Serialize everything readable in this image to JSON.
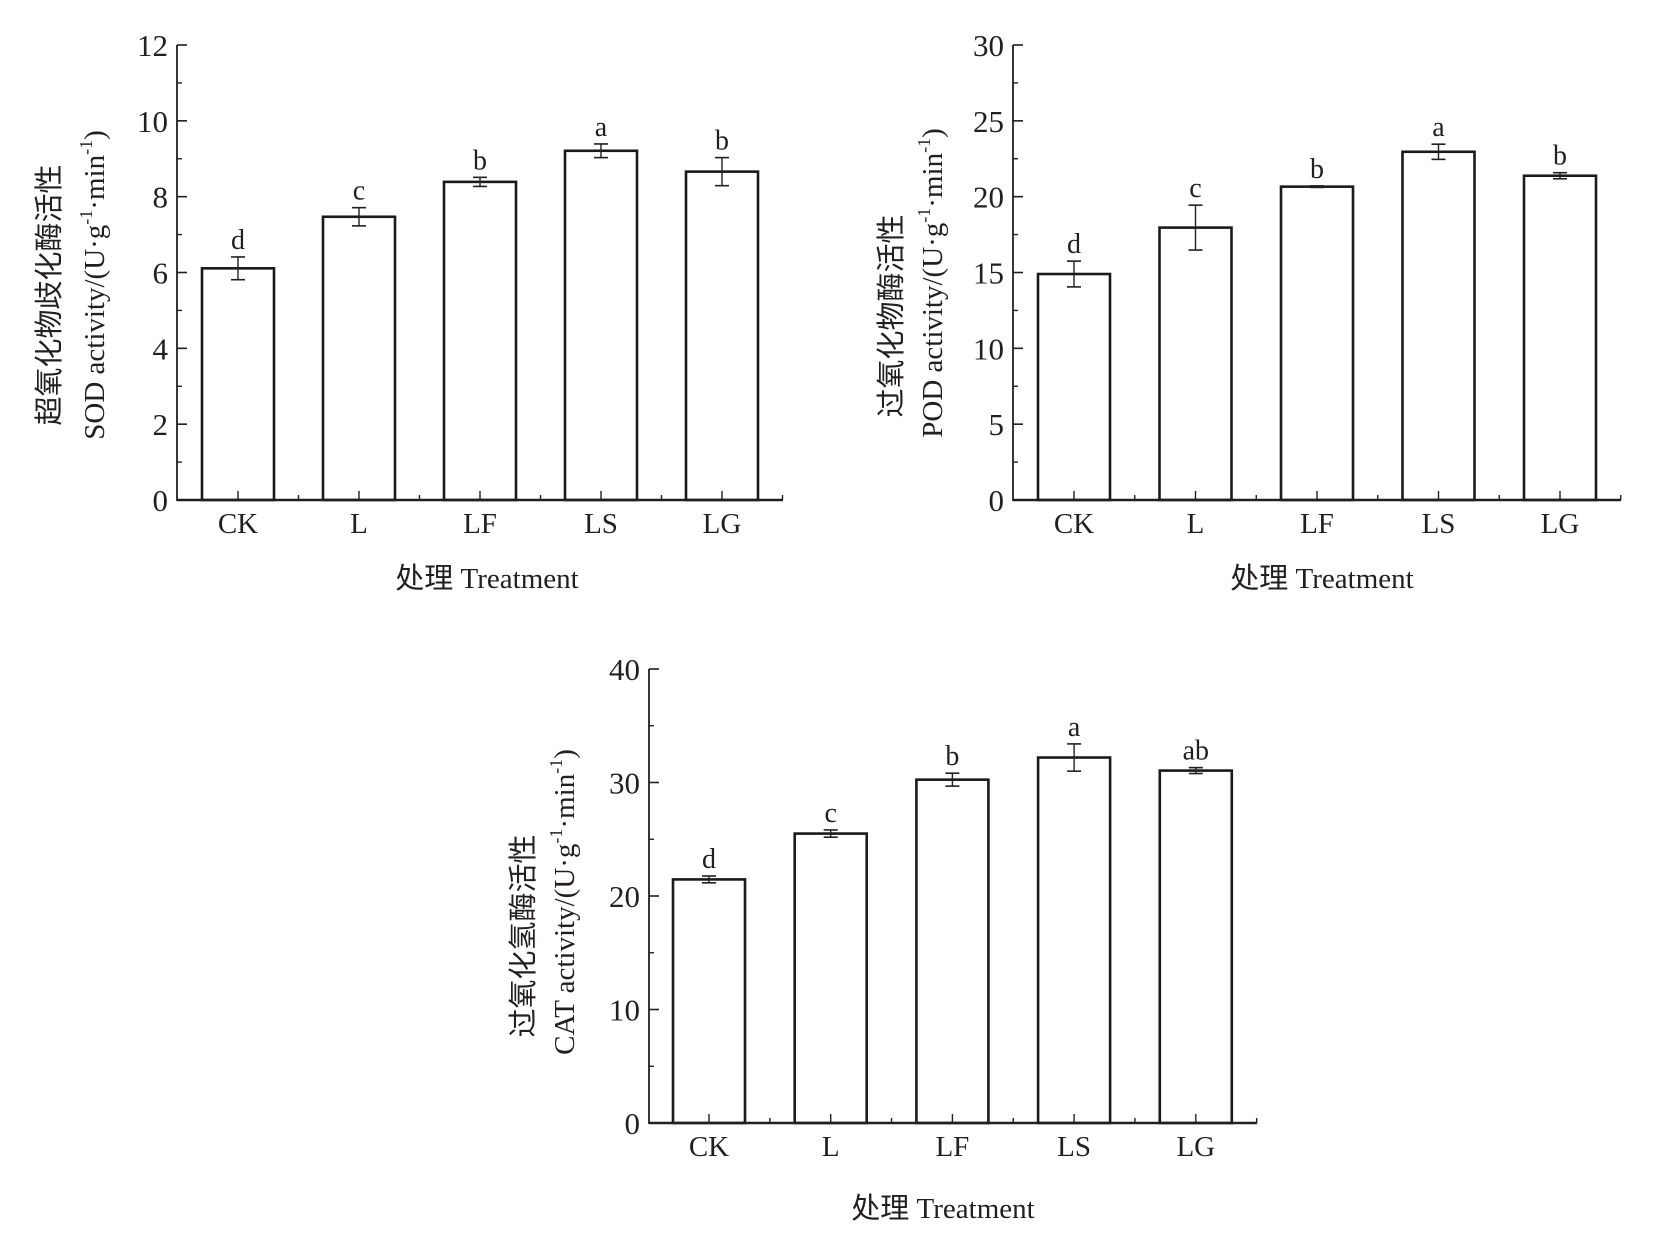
{
  "colors": {
    "ink": "#231f20",
    "bar_fill": "#ffffff",
    "bar_stroke": "#1a1a1a",
    "background": "#ffffff"
  },
  "chart_data": [
    {
      "id": "sod",
      "type": "bar",
      "title": "",
      "ylabel_cn": "超氧化物歧化酶活性",
      "ylabel_en": "SOD activity/(U·g-1·min-1)",
      "ylabel_en_parts": [
        "SOD activity/(U·g",
        "-1",
        "·min",
        "-1",
        ")"
      ],
      "xlabel": "处理 Treatment",
      "categories": [
        "CK",
        "L",
        "LF",
        "LS",
        "LG"
      ],
      "values": [
        6.11,
        7.47,
        8.39,
        9.21,
        8.66
      ],
      "errors": [
        0.3,
        0.24,
        0.12,
        0.18,
        0.37
      ],
      "significance": [
        "d",
        "c",
        "b",
        "a",
        "b"
      ],
      "ylim": [
        0,
        12
      ],
      "yticks": [
        0,
        2,
        4,
        6,
        8,
        10,
        12
      ],
      "ytick_labels": [
        "0",
        "2",
        "4",
        "6",
        "8",
        "10",
        "12"
      ],
      "minor_step": 1,
      "grid": false,
      "legend": "none"
    },
    {
      "id": "pod",
      "type": "bar",
      "title": "",
      "ylabel_cn": "过氧化物酶活性",
      "ylabel_en": "POD activity/(U·g-1·min-1)",
      "ylabel_en_parts": [
        "POD activity/(U·g",
        "-1",
        "·min",
        "-1",
        ")"
      ],
      "xlabel": "处理 Treatment",
      "categories": [
        "CK",
        "L",
        "LF",
        "LS",
        "LG"
      ],
      "values": [
        14.9,
        17.96,
        20.66,
        22.96,
        21.38
      ],
      "errors": [
        0.85,
        1.48,
        0.05,
        0.5,
        0.2
      ],
      "significance": [
        "d",
        "c",
        "b",
        "a",
        "b"
      ],
      "ylim": [
        0,
        30
      ],
      "yticks": [
        0,
        5,
        10,
        15,
        20,
        25,
        30
      ],
      "ytick_labels": [
        "0",
        "5",
        "10",
        "15",
        "20",
        "25",
        "30"
      ],
      "minor_step": 2.5,
      "grid": false,
      "legend": "none"
    },
    {
      "id": "cat",
      "type": "bar",
      "title": "",
      "ylabel_cn": "过氧化氢酶活性",
      "ylabel_en": "CAT activity/(U·g-1·min-1)",
      "ylabel_en_parts": [
        "CAT activity/(U·g",
        "-1",
        "·min",
        "-1",
        ")"
      ],
      "xlabel": "处理 Treatment",
      "categories": [
        "CK",
        "L",
        "LF",
        "LS",
        "LG"
      ],
      "values": [
        21.46,
        25.5,
        30.25,
        32.2,
        31.05
      ],
      "errors": [
        0.3,
        0.32,
        0.57,
        1.2,
        0.26
      ],
      "significance": [
        "d",
        "c",
        "b",
        "a",
        "ab"
      ],
      "ylim": [
        0,
        40
      ],
      "yticks": [
        0,
        10,
        20,
        30,
        40
      ],
      "ytick_labels": [
        "0",
        "10",
        "20",
        "30",
        "40"
      ],
      "minor_step": 5,
      "grid": false,
      "legend": "none"
    }
  ]
}
